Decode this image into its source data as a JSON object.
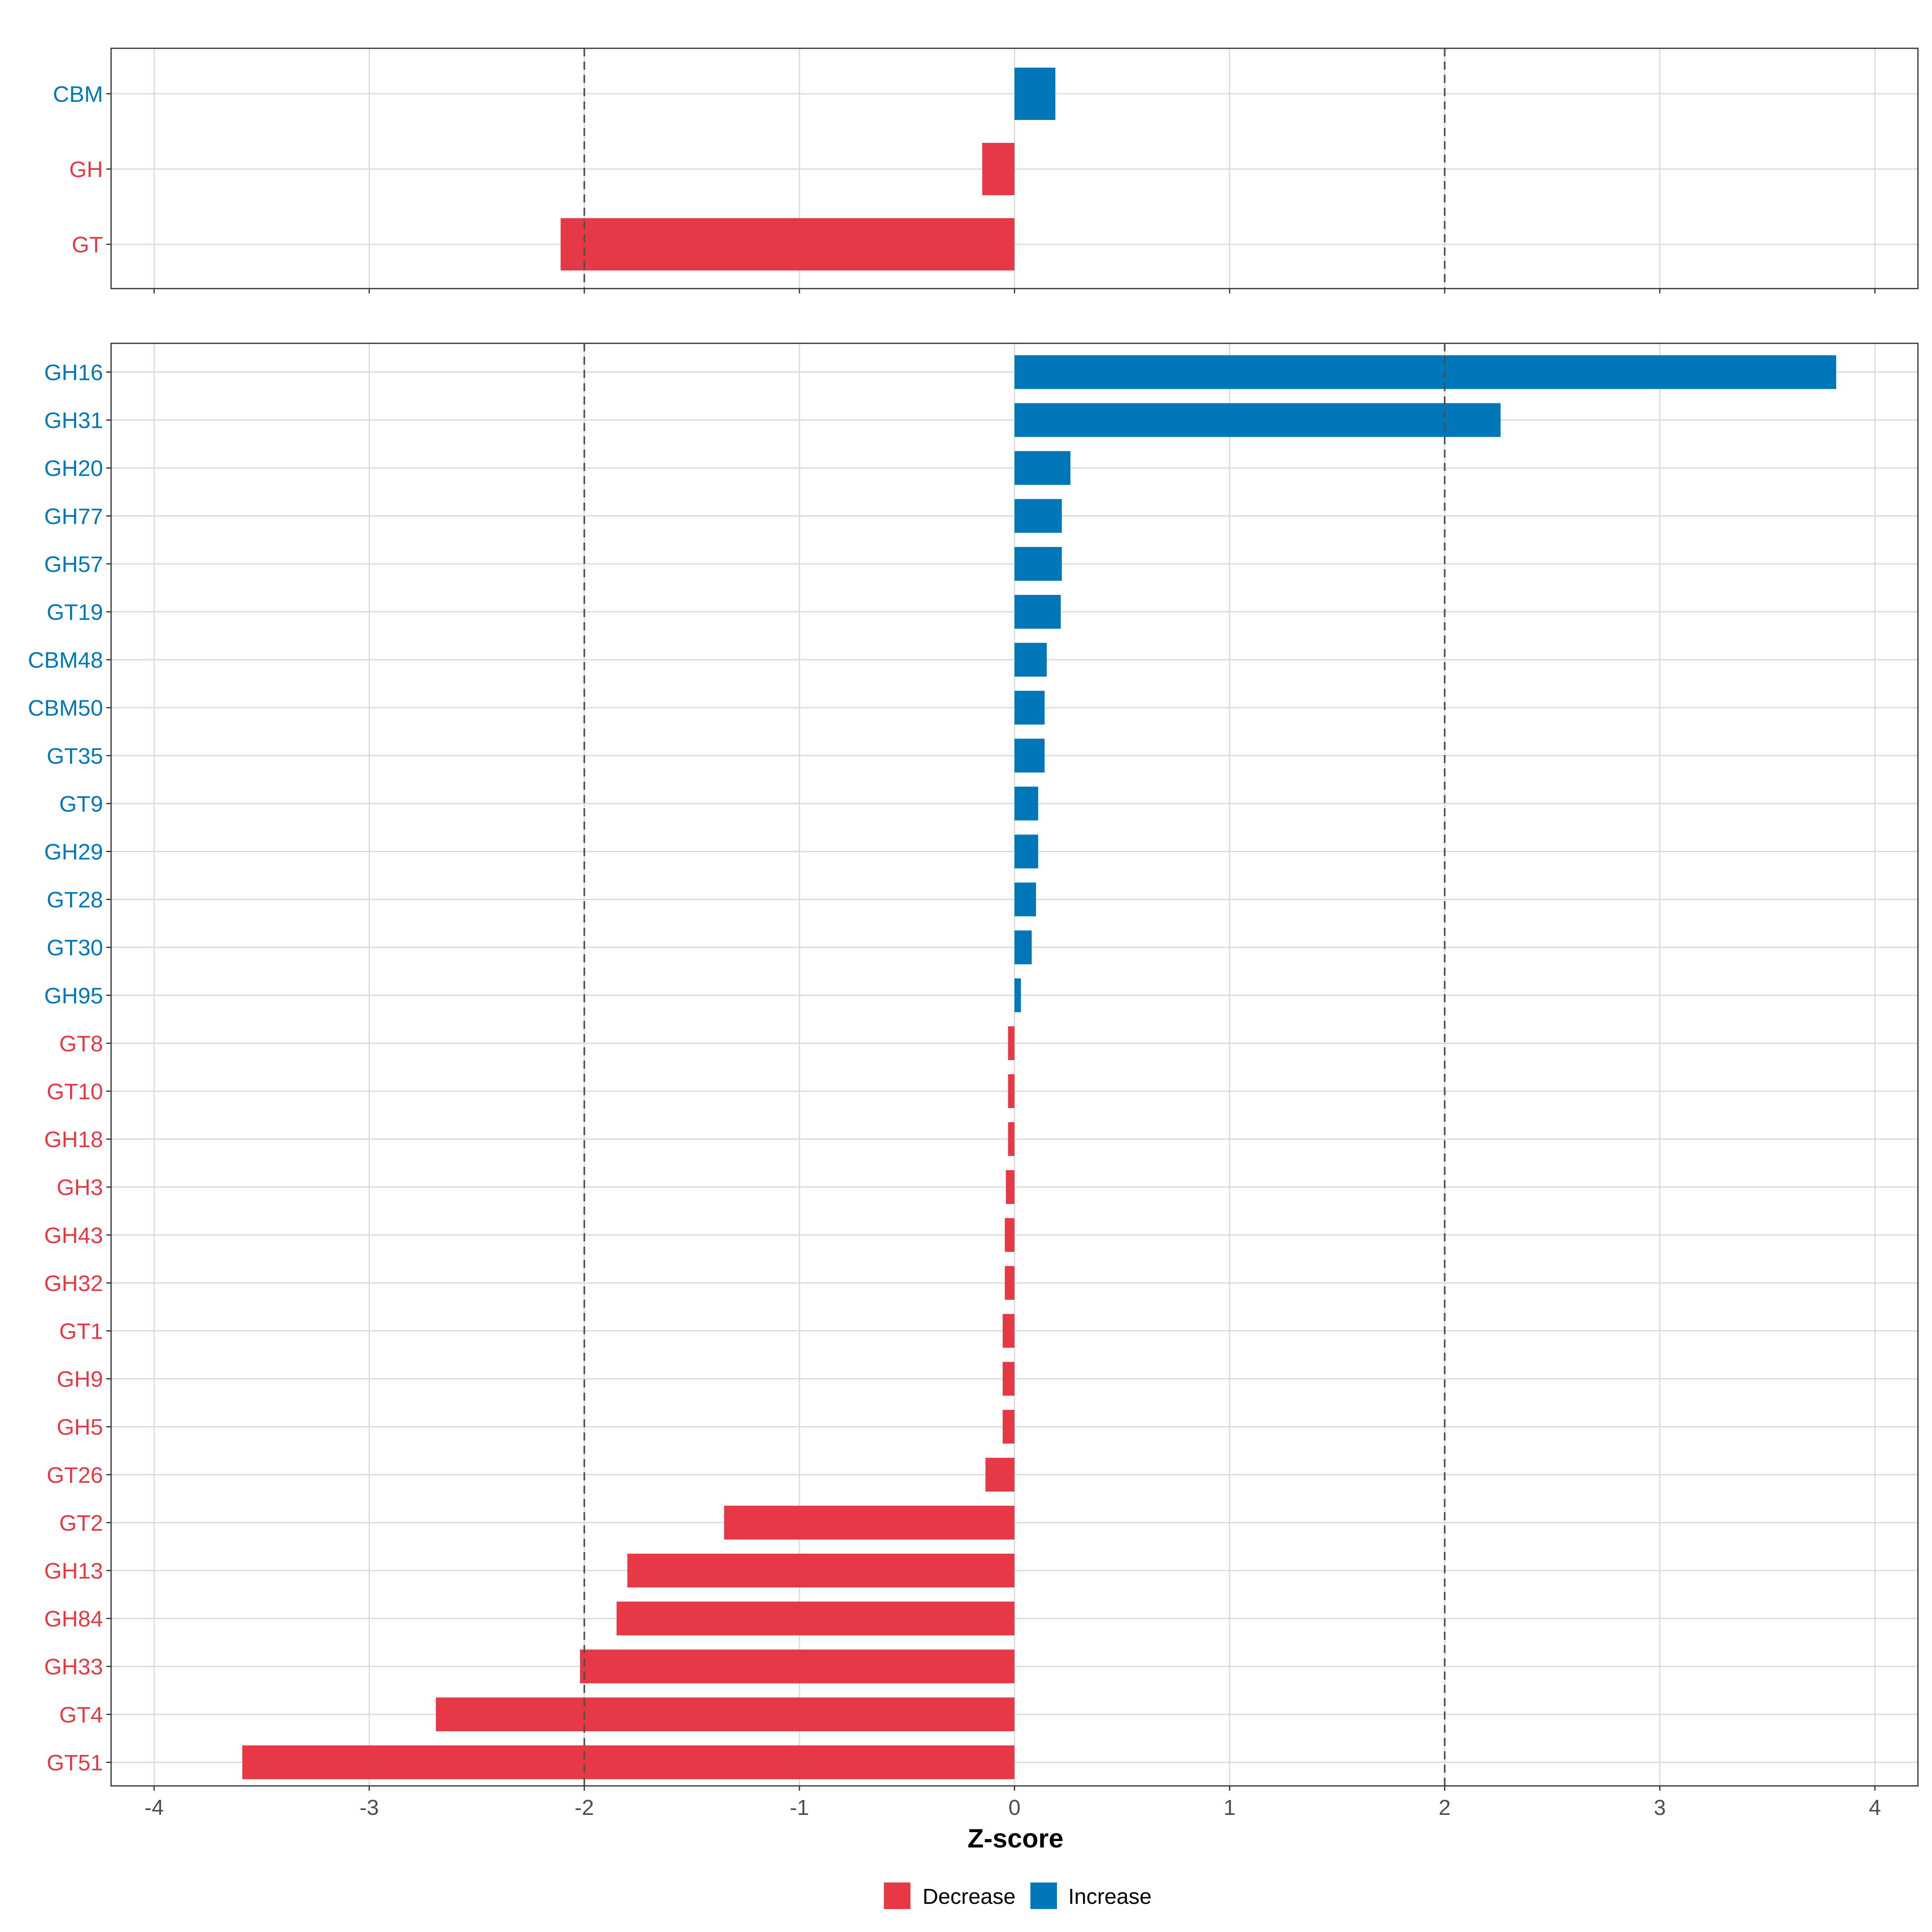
{
  "chart_data": [
    {
      "type": "bar",
      "orientation": "horizontal",
      "panel": "top",
      "categories": [
        "CBM",
        "GH",
        "GT"
      ],
      "values": [
        0.19,
        -0.15,
        -2.11
      ],
      "directions": [
        "Increase",
        "Decrease",
        "Decrease"
      ],
      "xlim": [
        -4.2,
        4.2
      ],
      "xticks": [
        -4,
        -3,
        -2,
        -1,
        0,
        1,
        2,
        3,
        4
      ],
      "reference_lines": [
        -2,
        2
      ],
      "grid": true
    },
    {
      "type": "bar",
      "orientation": "horizontal",
      "panel": "bottom",
      "categories": [
        "GH16",
        "GH31",
        "GH20",
        "GH77",
        "GH57",
        "GT19",
        "CBM48",
        "CBM50",
        "GT35",
        "GT9",
        "GH29",
        "GT28",
        "GT30",
        "GH95",
        "GT8",
        "GT10",
        "GH18",
        "GH3",
        "GH43",
        "GH32",
        "GT1",
        "GH9",
        "GH5",
        "GT26",
        "GT2",
        "GH13",
        "GH84",
        "GH33",
        "GT4",
        "GT51"
      ],
      "values": [
        3.82,
        2.26,
        0.26,
        0.22,
        0.22,
        0.215,
        0.15,
        0.14,
        0.14,
        0.11,
        0.11,
        0.1,
        0.08,
        0.03,
        -0.03,
        -0.03,
        -0.03,
        -0.04,
        -0.045,
        -0.045,
        -0.055,
        -0.055,
        -0.055,
        -0.135,
        -1.35,
        -1.8,
        -1.85,
        -2.02,
        -2.69,
        -3.59
      ],
      "directions": [
        "Increase",
        "Increase",
        "Increase",
        "Increase",
        "Increase",
        "Increase",
        "Increase",
        "Increase",
        "Increase",
        "Increase",
        "Increase",
        "Increase",
        "Increase",
        "Increase",
        "Decrease",
        "Decrease",
        "Decrease",
        "Decrease",
        "Decrease",
        "Decrease",
        "Decrease",
        "Decrease",
        "Decrease",
        "Decrease",
        "Decrease",
        "Decrease",
        "Decrease",
        "Decrease",
        "Decrease",
        "Decrease"
      ],
      "xlim": [
        -4.2,
        4.2
      ],
      "xticks": [
        -4,
        -3,
        -2,
        -1,
        0,
        1,
        2,
        3,
        4
      ],
      "xtick_labels": [
        "-4",
        "-3",
        "-2",
        "-1",
        "0",
        "1",
        "2",
        "3",
        "4"
      ],
      "xlabel": "Z-score",
      "reference_lines": [
        -2,
        2
      ],
      "grid": true
    }
  ],
  "legend": {
    "position": "bottom",
    "items": [
      {
        "label": "Decrease",
        "color": "#E63946"
      },
      {
        "label": "Increase",
        "color": "#0077B6"
      }
    ]
  },
  "colors": {
    "Decrease": "#E63946",
    "Increase": "#0077B6"
  }
}
